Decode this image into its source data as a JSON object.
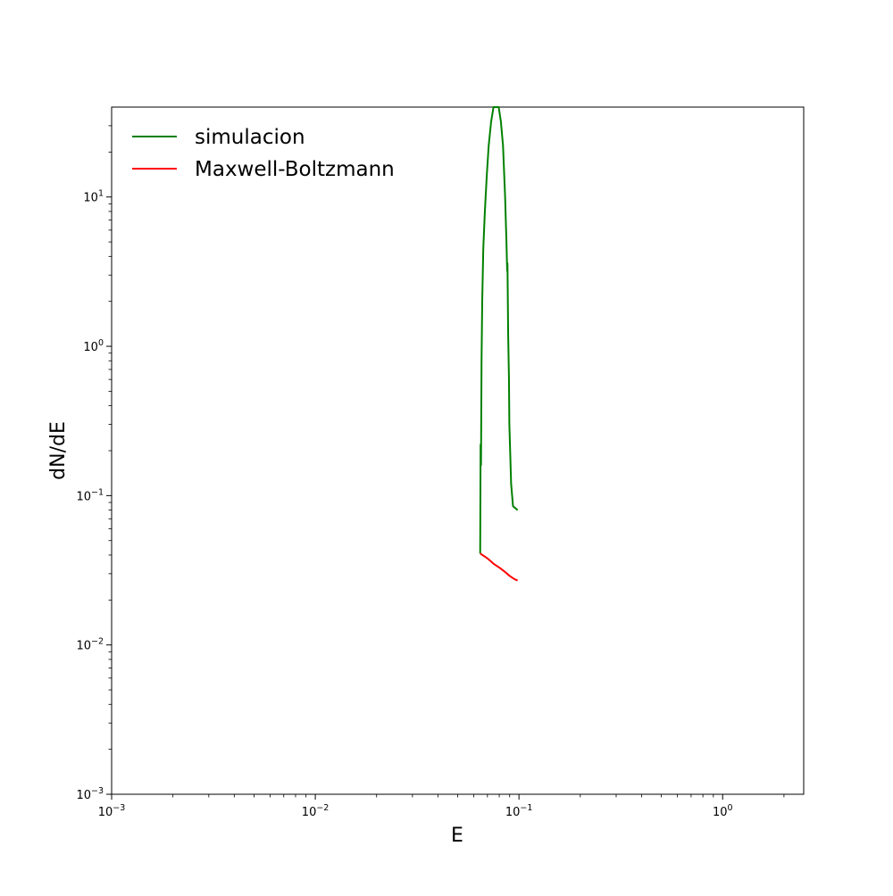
{
  "chart_data": {
    "type": "line",
    "title": "",
    "xlabel": "E",
    "ylabel": "dN/dE",
    "xscale": "log",
    "yscale": "log",
    "xlim": [
      0.001,
      2.5
    ],
    "ylim": [
      0.001,
      40
    ],
    "grid": false,
    "legend_position": "top-left",
    "x_ticks": [
      {
        "value": 0.001,
        "base": "10",
        "exp": "−3"
      },
      {
        "value": 0.01,
        "base": "10",
        "exp": "−2"
      },
      {
        "value": 0.1,
        "base": "10",
        "exp": "−1"
      },
      {
        "value": 1,
        "base": "10",
        "exp": "0"
      }
    ],
    "y_ticks": [
      {
        "value": 0.001,
        "base": "10",
        "exp": "−3"
      },
      {
        "value": 0.01,
        "base": "10",
        "exp": "−2"
      },
      {
        "value": 0.1,
        "base": "10",
        "exp": "−1"
      },
      {
        "value": 1,
        "base": "10",
        "exp": "0"
      },
      {
        "value": 10,
        "base": "10",
        "exp": "1"
      }
    ],
    "series": [
      {
        "name": "simulacion",
        "color": "#008000",
        "points": [
          [
            0.0645,
            0.041
          ],
          [
            0.0648,
            0.22
          ],
          [
            0.0651,
            0.16
          ],
          [
            0.0655,
            0.8
          ],
          [
            0.066,
            2.0
          ],
          [
            0.0668,
            4.5
          ],
          [
            0.068,
            8.0
          ],
          [
            0.0695,
            14.0
          ],
          [
            0.071,
            22.0
          ],
          [
            0.073,
            32.0
          ],
          [
            0.075,
            40.0
          ],
          [
            0.0795,
            40.0
          ],
          [
            0.0815,
            32.0
          ],
          [
            0.0835,
            22.0
          ],
          [
            0.0855,
            10.0
          ],
          [
            0.0868,
            5.0
          ],
          [
            0.0875,
            3.2
          ],
          [
            0.0878,
            3.6
          ],
          [
            0.0885,
            1.2
          ],
          [
            0.0893,
            0.6
          ],
          [
            0.0897,
            0.3
          ],
          [
            0.0905,
            0.2
          ],
          [
            0.0915,
            0.12
          ],
          [
            0.0935,
            0.085
          ],
          [
            0.0985,
            0.08
          ]
        ]
      },
      {
        "name": "Maxwell-Boltzmann",
        "color": "#ff0000",
        "points": [
          [
            0.0645,
            0.041
          ],
          [
            0.07,
            0.038
          ],
          [
            0.075,
            0.035
          ],
          [
            0.08,
            0.033
          ],
          [
            0.085,
            0.031
          ],
          [
            0.09,
            0.029
          ],
          [
            0.095,
            0.0276
          ],
          [
            0.0985,
            0.027
          ]
        ]
      }
    ]
  }
}
